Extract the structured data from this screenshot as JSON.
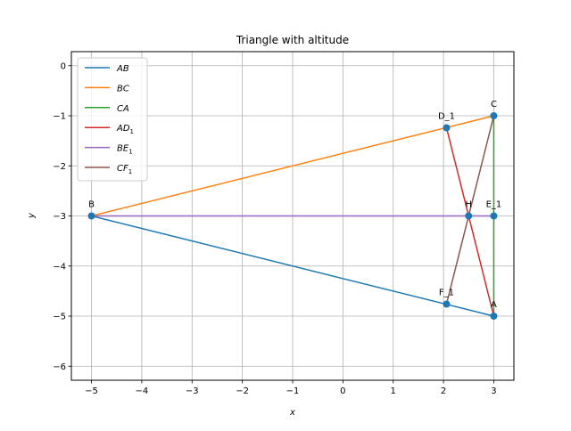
{
  "chart_data": {
    "type": "line",
    "title": "Triangle with altitude",
    "xlabel": "x",
    "ylabel": "y",
    "xlim": [
      -5.4,
      3.4
    ],
    "ylim": [
      -6.28,
      0.28
    ],
    "xticks": [
      -5,
      -4,
      -3,
      -2,
      -1,
      0,
      1,
      2,
      3
    ],
    "yticks": [
      0,
      -1,
      -2,
      -3,
      -4,
      -5,
      -6
    ],
    "grid": true,
    "legend_position": "top-left",
    "points": [
      {
        "label": "A",
        "x": 3,
        "y": -5
      },
      {
        "label": "B",
        "x": -5,
        "y": -3
      },
      {
        "label": "C",
        "x": 3,
        "y": -1
      },
      {
        "label": "D_1",
        "x": 2.06,
        "y": -1.24
      },
      {
        "label": "E_1",
        "x": 3,
        "y": -3
      },
      {
        "label": "F_1",
        "x": 2.06,
        "y": -4.76
      },
      {
        "label": "H",
        "x": 2.5,
        "y": -3
      }
    ],
    "series": [
      {
        "name": "AB",
        "name_sub": "",
        "color": "#1f77b4",
        "x": [
          3,
          -5
        ],
        "y": [
          -5,
          -3
        ]
      },
      {
        "name": "BC",
        "name_sub": "",
        "color": "#ff7f0e",
        "x": [
          -5,
          3
        ],
        "y": [
          -3,
          -1
        ]
      },
      {
        "name": "CA",
        "name_sub": "",
        "color": "#2ca02c",
        "x": [
          3,
          3
        ],
        "y": [
          -1,
          -5
        ]
      },
      {
        "name": "AD",
        "name_sub": "1",
        "color": "#d62728",
        "x": [
          3,
          2.06
        ],
        "y": [
          -5,
          -1.24
        ]
      },
      {
        "name": "BE",
        "name_sub": "1",
        "color": "#9467bd",
        "x": [
          -5,
          3
        ],
        "y": [
          -3,
          -3
        ]
      },
      {
        "name": "CF",
        "name_sub": "1",
        "color": "#8c564b",
        "x": [
          3,
          2.06
        ],
        "y": [
          -1,
          -4.76
        ]
      }
    ],
    "marker_color": "#1f77b4"
  }
}
